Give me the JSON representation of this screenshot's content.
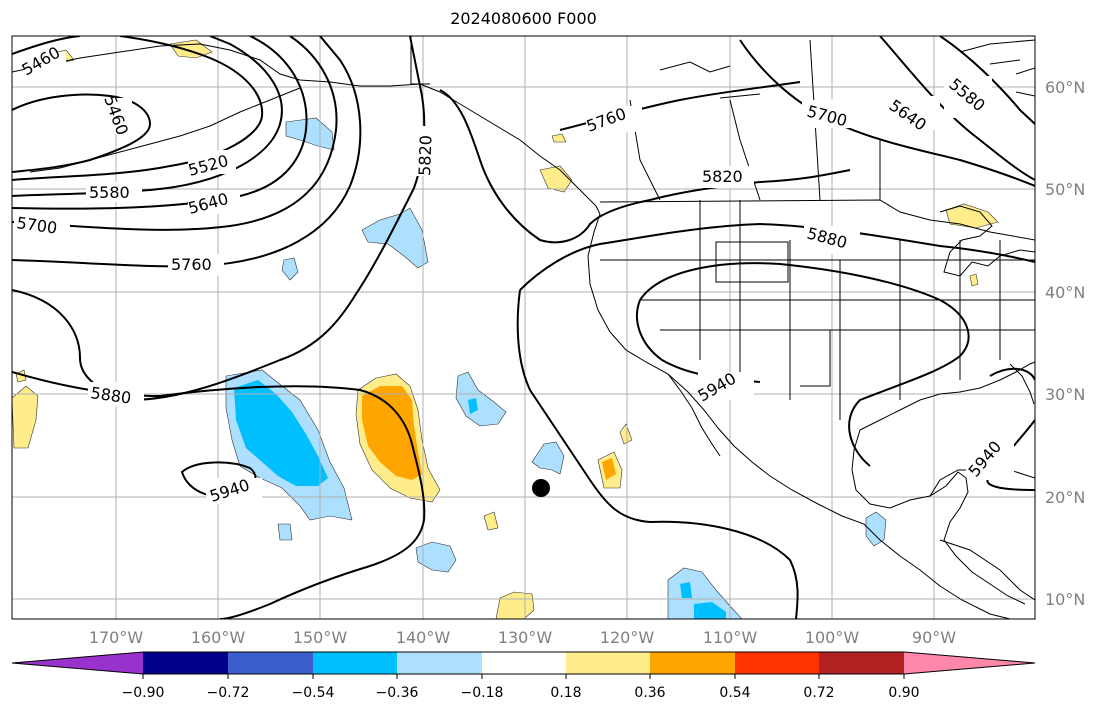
{
  "title": "2024080600 F000",
  "latitude_labels": [
    "60°N",
    "50°N",
    "40°N",
    "30°N",
    "20°N",
    "10°N"
  ],
  "longitude_labels": [
    "170°W",
    "160°W",
    "150°W",
    "140°W",
    "130°W",
    "120°W",
    "110°W",
    "100°W",
    "90°W"
  ],
  "contour_labels": [
    "5460",
    "5460",
    "5520",
    "5580",
    "5640",
    "5700",
    "5760",
    "5820",
    "5820",
    "5760",
    "5880",
    "5940",
    "5940",
    "5700",
    "5640",
    "5580",
    "5880",
    "5940",
    "5940"
  ],
  "colorbar": {
    "ticks": [
      "−0.90",
      "−0.72",
      "−0.54",
      "−0.36",
      "−0.18",
      "0.18",
      "0.36",
      "0.54",
      "0.72",
      "0.90"
    ],
    "colors": [
      "#9932CC",
      "#00008B",
      "#3A5FCD",
      "#00BFFF",
      "#ADDFFF",
      "#FFFFFF",
      "#FFEC8B",
      "#FFA500",
      "#FF3300",
      "#B22222",
      "#FF88AA"
    ]
  },
  "colors": {
    "land_line": "#000000",
    "grid": "#B0B0B0",
    "contour": "#000000",
    "marker": "#000000"
  }
}
